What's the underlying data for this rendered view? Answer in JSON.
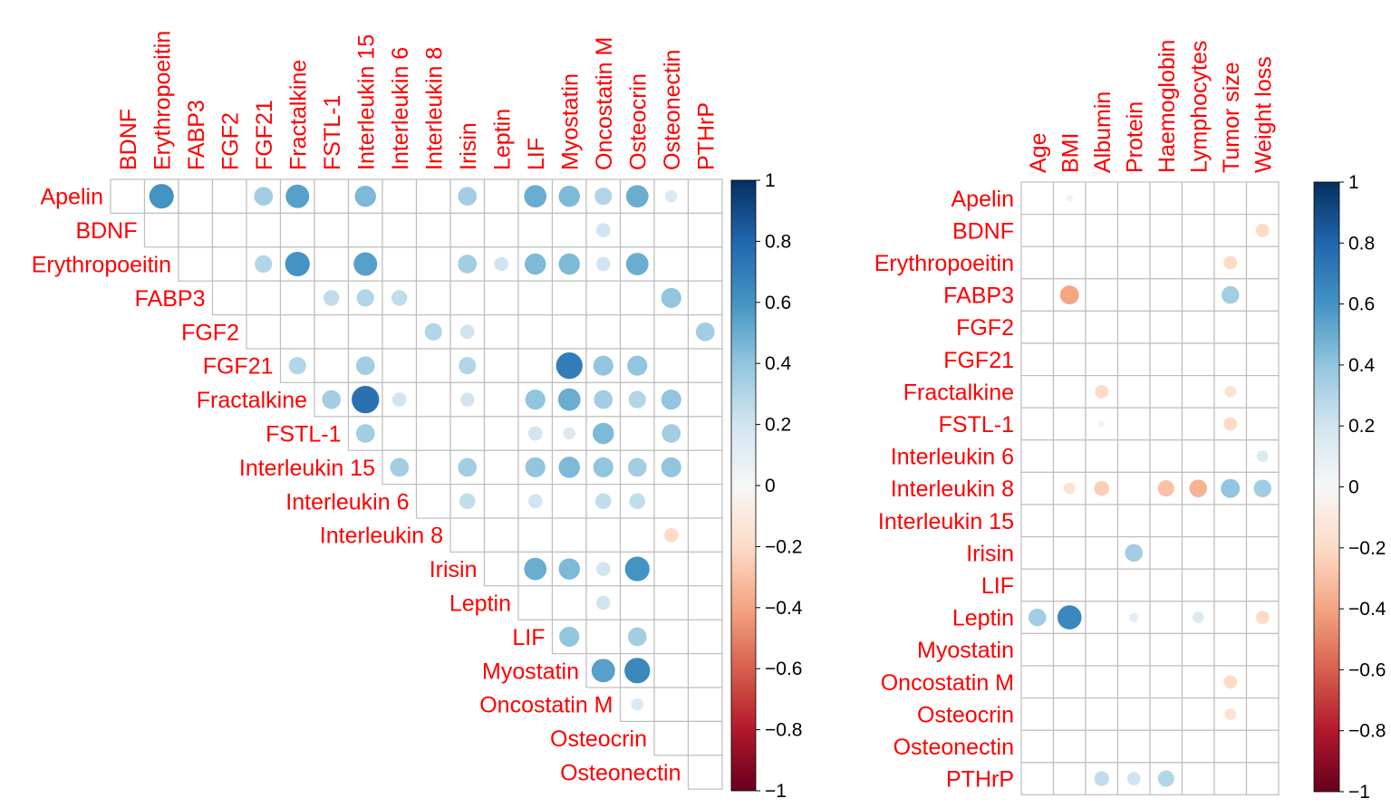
{
  "chart_data": [
    {
      "type": "heatmap",
      "style": "corrplot-circle-upper-triangular",
      "title": "",
      "label_color": "#FF0000",
      "col_labels": [
        "BDNF",
        "Erythropoeitin",
        "FABP3",
        "FGF2",
        "FGF21",
        "Fractalkine",
        "FSTL-1",
        "Interleukin 15",
        "Interleukin 6",
        "Interleukin 8",
        "Irisin",
        "Leptin",
        "LIF",
        "Myostatin",
        "Oncostatin M",
        "Osteocrin",
        "Osteonectin",
        "PTHrP"
      ],
      "row_labels": [
        "Apelin",
        "BDNF",
        "Erythropoeitin",
        "FABP3",
        "FGF2",
        "FGF21",
        "Fractalkine",
        "FSTL-1",
        "Interleukin 15",
        "Interleukin 6",
        "Interleukin 8",
        "Irisin",
        "Leptin",
        "LIF",
        "Myostatin",
        "Oncostatin M",
        "Osteocrin",
        "Osteonectin"
      ],
      "cells": [
        {
          "row": "Apelin",
          "col": "Erythropoeitin",
          "value": 0.6
        },
        {
          "row": "Apelin",
          "col": "FGF21",
          "value": 0.35
        },
        {
          "row": "Apelin",
          "col": "Fractalkine",
          "value": 0.55
        },
        {
          "row": "Apelin",
          "col": "Interleukin 15",
          "value": 0.45
        },
        {
          "row": "Apelin",
          "col": "Irisin",
          "value": 0.35
        },
        {
          "row": "Apelin",
          "col": "LIF",
          "value": 0.5
        },
        {
          "row": "Apelin",
          "col": "Myostatin",
          "value": 0.45
        },
        {
          "row": "Apelin",
          "col": "Oncostatin M",
          "value": 0.3
        },
        {
          "row": "Apelin",
          "col": "Osteocrin",
          "value": 0.5
        },
        {
          "row": "Apelin",
          "col": "Osteonectin",
          "value": 0.15
        },
        {
          "row": "BDNF",
          "col": "Oncostatin M",
          "value": 0.2
        },
        {
          "row": "Erythropoeitin",
          "col": "FGF21",
          "value": 0.3
        },
        {
          "row": "Erythropoeitin",
          "col": "Fractalkine",
          "value": 0.6
        },
        {
          "row": "Erythropoeitin",
          "col": "Interleukin 15",
          "value": 0.55
        },
        {
          "row": "Erythropoeitin",
          "col": "Irisin",
          "value": 0.35
        },
        {
          "row": "Erythropoeitin",
          "col": "Leptin",
          "value": 0.2
        },
        {
          "row": "Erythropoeitin",
          "col": "LIF",
          "value": 0.45
        },
        {
          "row": "Erythropoeitin",
          "col": "Myostatin",
          "value": 0.45
        },
        {
          "row": "Erythropoeitin",
          "col": "Oncostatin M",
          "value": 0.2
        },
        {
          "row": "Erythropoeitin",
          "col": "Osteocrin",
          "value": 0.5
        },
        {
          "row": "FABP3",
          "col": "FSTL-1",
          "value": 0.25
        },
        {
          "row": "FABP3",
          "col": "Interleukin 15",
          "value": 0.3
        },
        {
          "row": "FABP3",
          "col": "Interleukin 6",
          "value": 0.25
        },
        {
          "row": "FABP3",
          "col": "Osteonectin",
          "value": 0.4
        },
        {
          "row": "FGF2",
          "col": "Interleukin 8",
          "value": 0.3
        },
        {
          "row": "FGF2",
          "col": "Irisin",
          "value": 0.2
        },
        {
          "row": "FGF2",
          "col": "PTHrP",
          "value": 0.35
        },
        {
          "row": "FGF21",
          "col": "Fractalkine",
          "value": 0.3
        },
        {
          "row": "FGF21",
          "col": "Interleukin 15",
          "value": 0.35
        },
        {
          "row": "FGF21",
          "col": "Irisin",
          "value": 0.3
        },
        {
          "row": "FGF21",
          "col": "Myostatin",
          "value": 0.7
        },
        {
          "row": "FGF21",
          "col": "Oncostatin M",
          "value": 0.4
        },
        {
          "row": "FGF21",
          "col": "Osteocrin",
          "value": 0.4
        },
        {
          "row": "Fractalkine",
          "col": "FSTL-1",
          "value": 0.35
        },
        {
          "row": "Fractalkine",
          "col": "Interleukin 15",
          "value": 0.75
        },
        {
          "row": "Fractalkine",
          "col": "Interleukin 6",
          "value": 0.2
        },
        {
          "row": "Fractalkine",
          "col": "Irisin",
          "value": 0.2
        },
        {
          "row": "Fractalkine",
          "col": "LIF",
          "value": 0.4
        },
        {
          "row": "Fractalkine",
          "col": "Myostatin",
          "value": 0.5
        },
        {
          "row": "Fractalkine",
          "col": "Oncostatin M",
          "value": 0.35
        },
        {
          "row": "Fractalkine",
          "col": "Osteocrin",
          "value": 0.3
        },
        {
          "row": "Fractalkine",
          "col": "Osteonectin",
          "value": 0.4
        },
        {
          "row": "FSTL-1",
          "col": "Interleukin 15",
          "value": 0.35
        },
        {
          "row": "FSTL-1",
          "col": "LIF",
          "value": 0.2
        },
        {
          "row": "FSTL-1",
          "col": "Myostatin",
          "value": 0.15
        },
        {
          "row": "FSTL-1",
          "col": "Oncostatin M",
          "value": 0.45
        },
        {
          "row": "FSTL-1",
          "col": "Osteonectin",
          "value": 0.35
        },
        {
          "row": "Interleukin 15",
          "col": "Interleukin 6",
          "value": 0.35
        },
        {
          "row": "Interleukin 15",
          "col": "Irisin",
          "value": 0.35
        },
        {
          "row": "Interleukin 15",
          "col": "LIF",
          "value": 0.4
        },
        {
          "row": "Interleukin 15",
          "col": "Myostatin",
          "value": 0.45
        },
        {
          "row": "Interleukin 15",
          "col": "Oncostatin M",
          "value": 0.4
        },
        {
          "row": "Interleukin 15",
          "col": "Osteocrin",
          "value": 0.35
        },
        {
          "row": "Interleukin 15",
          "col": "Osteonectin",
          "value": 0.4
        },
        {
          "row": "Interleukin 6",
          "col": "Irisin",
          "value": 0.25
        },
        {
          "row": "Interleukin 6",
          "col": "LIF",
          "value": 0.2
        },
        {
          "row": "Interleukin 6",
          "col": "Oncostatin M",
          "value": 0.25
        },
        {
          "row": "Interleukin 6",
          "col": "Osteocrin",
          "value": 0.25
        },
        {
          "row": "Interleukin 8",
          "col": "Osteonectin",
          "value": -0.2
        },
        {
          "row": "Irisin",
          "col": "LIF",
          "value": 0.5
        },
        {
          "row": "Irisin",
          "col": "Myostatin",
          "value": 0.45
        },
        {
          "row": "Irisin",
          "col": "Oncostatin M",
          "value": 0.2
        },
        {
          "row": "Irisin",
          "col": "Osteocrin",
          "value": 0.6
        },
        {
          "row": "Leptin",
          "col": "Oncostatin M",
          "value": 0.2
        },
        {
          "row": "LIF",
          "col": "Myostatin",
          "value": 0.4
        },
        {
          "row": "LIF",
          "col": "Osteocrin",
          "value": 0.35
        },
        {
          "row": "Myostatin",
          "col": "Oncostatin M",
          "value": 0.55
        },
        {
          "row": "Myostatin",
          "col": "Osteocrin",
          "value": 0.65
        },
        {
          "row": "Oncostatin M",
          "col": "Osteocrin",
          "value": 0.15
        }
      ],
      "colorbar": {
        "ticks": [
          "1",
          "0.8",
          "0.6",
          "0.4",
          "0.2",
          "0",
          "−0.2",
          "−0.4",
          "−0.6",
          "−0.8",
          "−1"
        ],
        "range": [
          -1,
          1
        ]
      }
    },
    {
      "type": "heatmap",
      "style": "corrplot-circle-full",
      "title": "",
      "label_color": "#FF0000",
      "col_labels": [
        "Age",
        "BMI",
        "Albumin",
        "Protein",
        "Haemoglobin",
        "Lymphocytes",
        "Tumor size",
        "Weight loss"
      ],
      "row_labels": [
        "Apelin",
        "BDNF",
        "Erythropoeitin",
        "FABP3",
        "FGF2",
        "FGF21",
        "Fractalkine",
        "FSTL-1",
        "Interleukin 6",
        "Interleukin 8",
        "Interleukin 15",
        "Irisin",
        "LIF",
        "Leptin",
        "Myostatin",
        "Oncostatin M",
        "Osteocrin",
        "Osteonectin",
        "PTHrP"
      ],
      "cells": [
        {
          "row": "Apelin",
          "col": "BMI",
          "value": 0.05
        },
        {
          "row": "BDNF",
          "col": "Weight loss",
          "value": -0.2
        },
        {
          "row": "Erythropoeitin",
          "col": "Tumor size",
          "value": -0.2
        },
        {
          "row": "FABP3",
          "col": "BMI",
          "value": -0.4
        },
        {
          "row": "FABP3",
          "col": "Tumor size",
          "value": 0.35
        },
        {
          "row": "Fractalkine",
          "col": "Albumin",
          "value": -0.2
        },
        {
          "row": "Fractalkine",
          "col": "Tumor size",
          "value": -0.15
        },
        {
          "row": "FSTL-1",
          "col": "Albumin",
          "value": -0.05
        },
        {
          "row": "FSTL-1",
          "col": "Tumor size",
          "value": -0.2
        },
        {
          "row": "Interleukin 6",
          "col": "Weight loss",
          "value": 0.15
        },
        {
          "row": "Interleukin 8",
          "col": "BMI",
          "value": -0.15
        },
        {
          "row": "Interleukin 8",
          "col": "Albumin",
          "value": -0.25
        },
        {
          "row": "Interleukin 8",
          "col": "Haemoglobin",
          "value": -0.3
        },
        {
          "row": "Interleukin 8",
          "col": "Lymphocytes",
          "value": -0.35
        },
        {
          "row": "Interleukin 8",
          "col": "Tumor size",
          "value": 0.4
        },
        {
          "row": "Interleukin 8",
          "col": "Weight loss",
          "value": 0.35
        },
        {
          "row": "Irisin",
          "col": "Protein",
          "value": 0.35
        },
        {
          "row": "Leptin",
          "col": "Age",
          "value": 0.35
        },
        {
          "row": "Leptin",
          "col": "BMI",
          "value": 0.65
        },
        {
          "row": "Leptin",
          "col": "Protein",
          "value": 0.1
        },
        {
          "row": "Leptin",
          "col": "Lymphocytes",
          "value": 0.15
        },
        {
          "row": "Leptin",
          "col": "Weight loss",
          "value": -0.2
        },
        {
          "row": "Oncostatin M",
          "col": "Tumor size",
          "value": -0.2
        },
        {
          "row": "Osteocrin",
          "col": "Tumor size",
          "value": -0.15
        },
        {
          "row": "PTHrP",
          "col": "Albumin",
          "value": 0.25
        },
        {
          "row": "PTHrP",
          "col": "Protein",
          "value": 0.2
        },
        {
          "row": "PTHrP",
          "col": "Haemoglobin",
          "value": 0.3
        }
      ],
      "colorbar": {
        "ticks": [
          "1",
          "0.8",
          "0.6",
          "0.4",
          "0.2",
          "0",
          "−0.2",
          "−0.4",
          "−0.6",
          "−0.8",
          "−1"
        ],
        "range": [
          -1,
          1
        ]
      }
    }
  ]
}
